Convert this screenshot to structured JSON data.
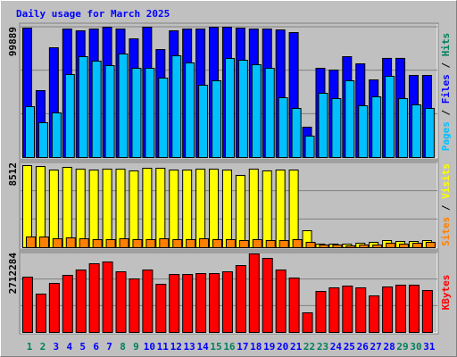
{
  "chart_data": {
    "type": "bar",
    "title": "Daily usage for March 2025",
    "title_color": "#0000ff",
    "categories": [
      "1",
      "2",
      "3",
      "4",
      "5",
      "6",
      "7",
      "8",
      "9",
      "10",
      "11",
      "12",
      "13",
      "14",
      "15",
      "16",
      "17",
      "18",
      "19",
      "20",
      "21",
      "22",
      "23",
      "24",
      "25",
      "26",
      "27",
      "28",
      "29",
      "30",
      "31"
    ],
    "category_colors": [
      "#00805c",
      "#00805c",
      "#0000ff",
      "#0000ff",
      "#0000ff",
      "#0000ff",
      "#0000ff",
      "#00805c",
      "#00805c",
      "#0000ff",
      "#0000ff",
      "#0000ff",
      "#0000ff",
      "#0000ff",
      "#00805c",
      "#00805c",
      "#0000ff",
      "#0000ff",
      "#0000ff",
      "#0000ff",
      "#0000ff",
      "#00805c",
      "#00805c",
      "#0000ff",
      "#0000ff",
      "#0000ff",
      "#0000ff",
      "#0000ff",
      "#00805c",
      "#00805c",
      "#0000ff"
    ],
    "panels": [
      {
        "ylim": [
          0,
          99889
        ],
        "yticks": [
          99889
        ],
        "grid_lines": 3,
        "series": [
          {
            "name": "Pages",
            "color": "#00c0ff",
            "values": [
              38998,
              26683,
              34209,
              63628,
              77311,
              73890,
              70470,
              79364,
              68417,
              68417,
              60891,
              77995,
              72522,
              55418,
              58839,
              75943,
              74575,
              71154,
              68417,
              45839,
              37629,
              16420,
              49260,
              45155,
              58839,
              39682,
              46524,
              62259,
              45155,
              40366,
              37629
            ]
          },
          {
            "name": "Files",
            "color": "#0000ff",
            "values": [
              99205,
              51313,
              84153,
              98521,
              97152,
              98521,
              99889,
              98521,
              90995,
              99889,
              82785,
              97152,
              98521,
              98521,
              99889,
              99889,
              99205,
              98521,
              98521,
              97836,
              95784,
              23262,
              68417,
              67049,
              77311,
              71838,
              59523,
              75995,
              75995,
              62944,
              62944
            ]
          }
        ],
        "extra_legend": [
          {
            "name": "Hits",
            "color": "#00805c"
          }
        ]
      },
      {
        "ylim": [
          0,
          8512
        ],
        "yticks": [
          8512
        ],
        "grid_lines": 3,
        "series": [
          {
            "name": "Sites",
            "color": "#ff8000",
            "values": [
              1075,
              1075,
              896,
              986,
              896,
              806,
              806,
              896,
              806,
              806,
              896,
              806,
              806,
              896,
              806,
              806,
              717,
              806,
              717,
              717,
              806,
              538,
              269,
              269,
              179,
              269,
              269,
              448,
              358,
              448,
              538
            ]
          },
          {
            "name": "Visits",
            "color": "#ffff00",
            "values": [
              8243,
              8154,
              7795,
              8064,
              7885,
              7795,
              7885,
              7885,
              7706,
              7974,
              7974,
              7795,
              7795,
              7885,
              7885,
              7795,
              7258,
              7885,
              7706,
              7795,
              7795,
              1702,
              358,
              358,
              358,
              448,
              538,
              717,
              627,
              627,
              717
            ]
          }
        ]
      },
      {
        "ylim": [
          0,
          2712284
        ],
        "yticks": [
          2712284
        ],
        "grid_lines": 3,
        "series": [
          {
            "name": "KBytes",
            "color": "#ff0000",
            "values": [
              1889450,
              1310425,
              1676125,
              1950400,
              2133250,
              2346575,
              2407525,
              2072300,
              1828500,
              2133250,
              1645650,
              1980875,
              1980875,
              2011350,
              2011350,
              2072300,
              2285625,
              2681800,
              2529425,
              2133250,
              1858975,
              670450,
              1401850,
              1523750,
              1584700,
              1523750,
              1249475,
              1554225,
              1615175,
              1615175,
              1432325
            ]
          }
        ]
      }
    ]
  }
}
